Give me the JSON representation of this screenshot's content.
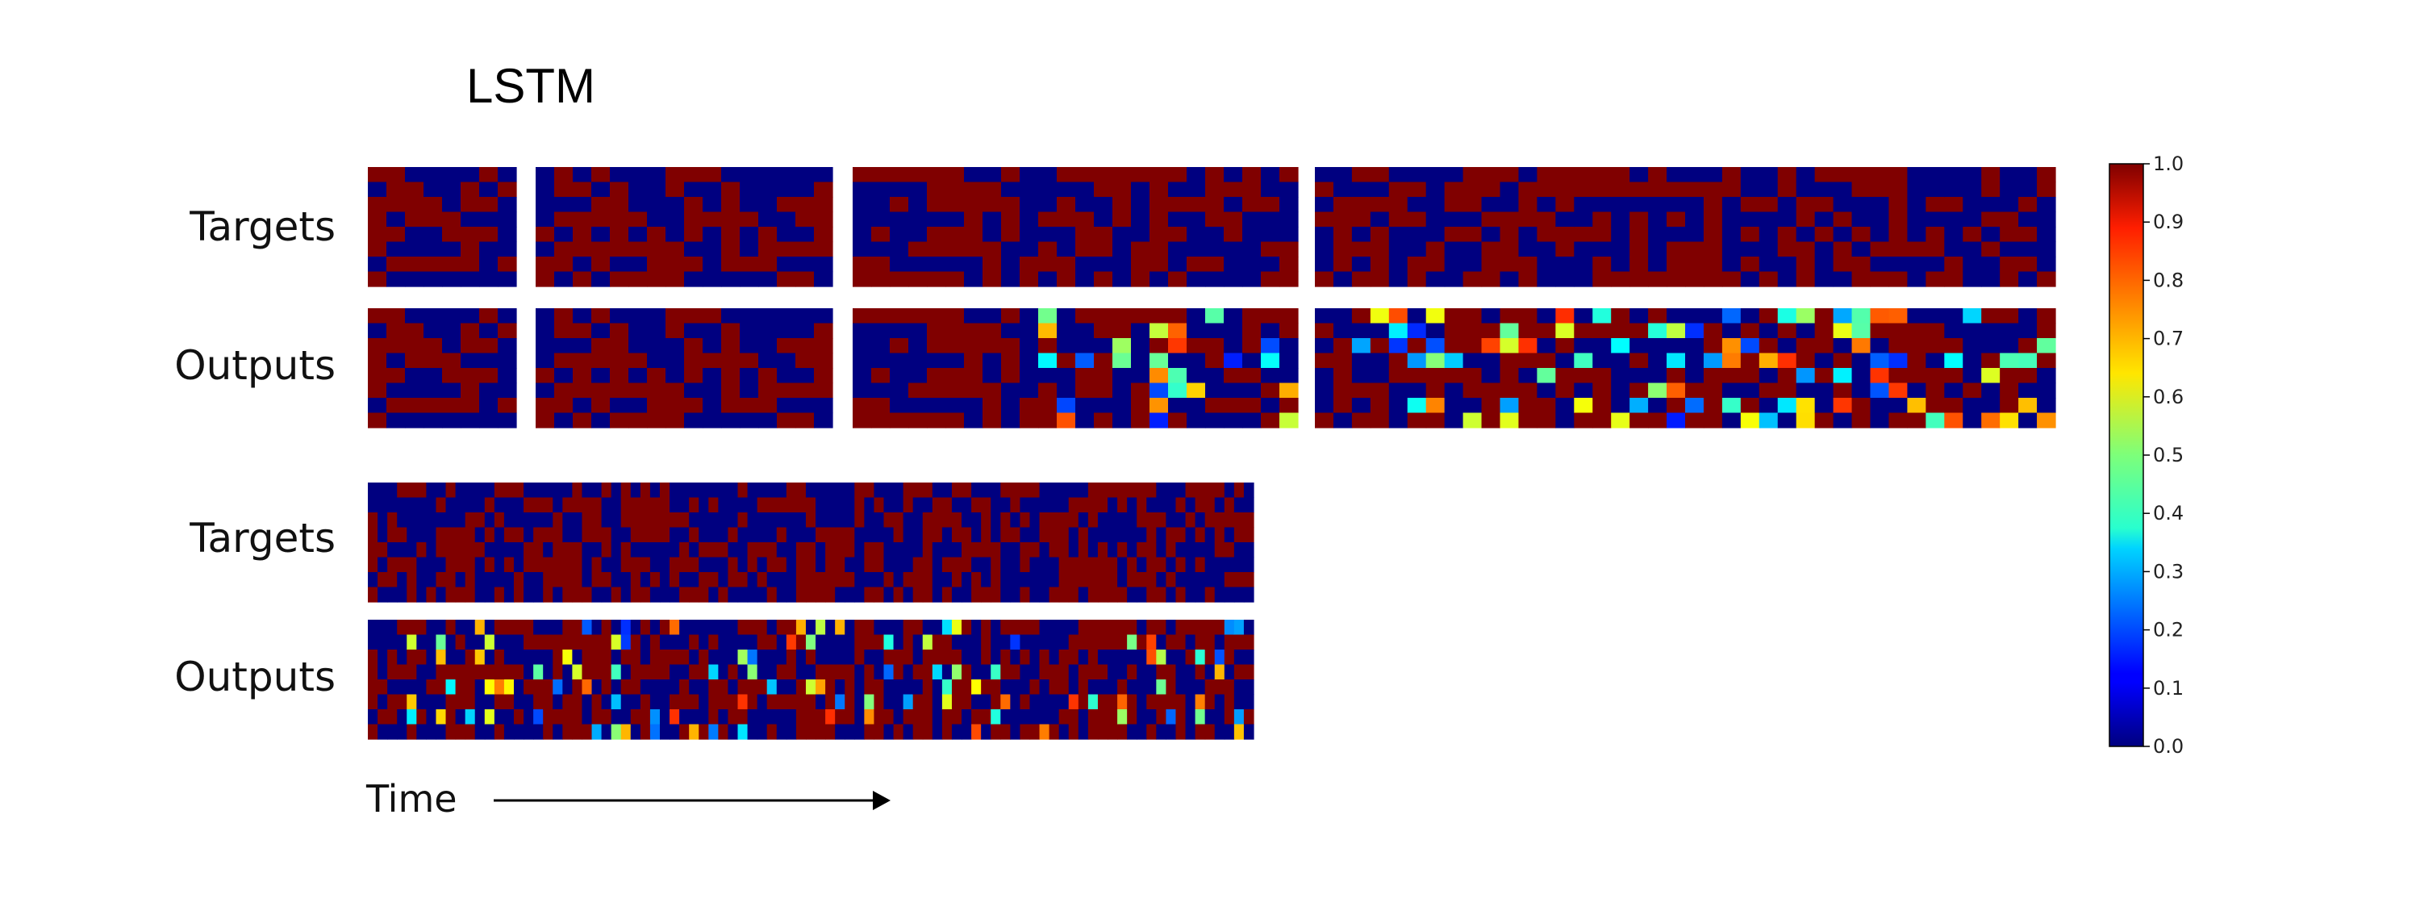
{
  "chart_data": {
    "type": "heatmap",
    "title": "LSTM",
    "row_labels": [
      "Targets",
      "Outputs",
      "Targets",
      "Outputs"
    ],
    "xlabel": "Time",
    "colorbar": {
      "colormap": "jet",
      "range": [
        0.0,
        1.0
      ],
      "ticks": [
        "0.0",
        "0.1",
        "0.2",
        "0.3",
        "0.4",
        "0.5",
        "0.6",
        "0.7",
        "0.8",
        "0.9",
        "1.0"
      ]
    },
    "top_group": {
      "segments": 4,
      "segment_lengths": [
        8,
        16,
        24,
        40
      ],
      "bits_per_step": 8,
      "description_values": "binary targets (0 or 1) with outputs close to targets in short sequences and degrading for longer ones"
    },
    "bottom_group": {
      "segments": 1,
      "segment_lengths": [
        91
      ],
      "bits_per_step": 8
    }
  }
}
